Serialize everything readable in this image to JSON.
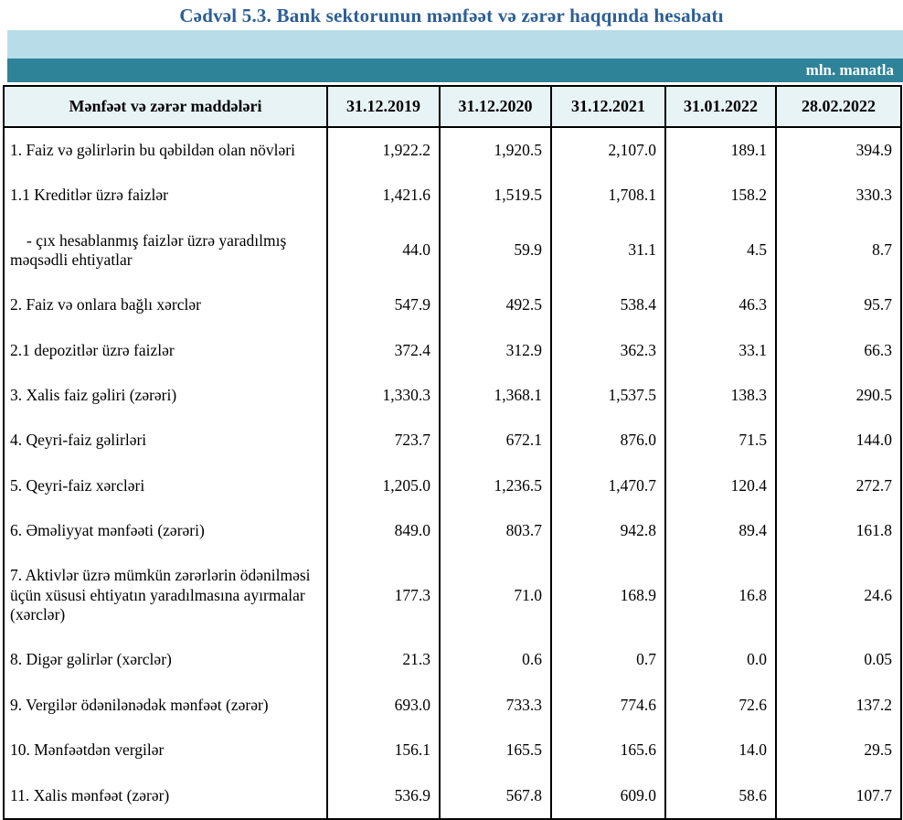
{
  "title": "Cədvəl 5.3. Bank sektorunun mənfəət və zərər haqqında hesabatı",
  "unit_label": "mln. manatla",
  "colors": {
    "title_color": "#2C5F96",
    "band_light": "#B8DDE8",
    "band_teal": "#2E8399",
    "header_bg": "#E8F3F6",
    "border_color": "#000000"
  },
  "table": {
    "header": [
      "Mənfəət və zərər maddələri",
      "31.12.2019",
      "31.12.2020",
      "31.12.2021",
      "31.01.2022",
      "28.02.2022"
    ],
    "rows": [
      {
        "label": "1. Faiz və gəlirlərin bu qəbildən olan növləri",
        "indent": 0,
        "values": [
          "1,922.2",
          "1,920.5",
          "2,107.0",
          "189.1",
          "394.9"
        ]
      },
      {
        "label": "1.1 Kreditlər üzrə faizlər",
        "indent": 1,
        "values": [
          "1,421.6",
          "1,519.5",
          "1,708.1",
          "158.2",
          "330.3"
        ]
      },
      {
        "label": "-  çıx hesablanmış faizlər üzrə yaradılmış məqsədli ehtiyatlar",
        "indent": 2,
        "values": [
          "44.0",
          "59.9",
          "31.1",
          "4.5",
          "8.7"
        ]
      },
      {
        "label": "2. Faiz və onlara bağlı xərclər",
        "indent": 0,
        "values": [
          "547.9",
          "492.5",
          "538.4",
          "46.3",
          "95.7"
        ]
      },
      {
        "label": "2.1 depozitlər üzrə faizlər",
        "indent": 1,
        "values": [
          "372.4",
          "312.9",
          "362.3",
          "33.1",
          "66.3"
        ]
      },
      {
        "label": "3. Xalis faiz gəliri (zərəri)",
        "indent": 0,
        "values": [
          "1,330.3",
          "1,368.1",
          "1,537.5",
          "138.3",
          "290.5"
        ]
      },
      {
        "label": "4. Qeyri-faiz gəlirləri",
        "indent": 0,
        "values": [
          "723.7",
          "672.1",
          "876.0",
          "71.5",
          "144.0"
        ]
      },
      {
        "label": "5. Qeyri-faiz xərcləri",
        "indent": 0,
        "values": [
          "1,205.0",
          "1,236.5",
          "1,470.7",
          "120.4",
          "272.7"
        ]
      },
      {
        "label": "6. Əməliyyat mənfəəti (zərəri)",
        "indent": 0,
        "values": [
          "849.0",
          "803.7",
          "942.8",
          "89.4",
          "161.8"
        ]
      },
      {
        "label": "7. Aktivlər üzrə mümkün zərərlərin ödənilməsi üçün xüsusi ehtiyatın yaradılmasına ayırmalar (xərclər)",
        "indent": 0,
        "values": [
          "177.3",
          "71.0",
          "168.9",
          "16.8",
          "24.6"
        ]
      },
      {
        "label": "8. Digər gəlirlər (xərclər)",
        "indent": 0,
        "values": [
          "21.3",
          "0.6",
          "0.7",
          "0.0",
          "0.05"
        ]
      },
      {
        "label": "9. Vergilər ödənilənədək mənfəət (zərər)",
        "indent": 0,
        "values": [
          "693.0",
          "733.3",
          "774.6",
          "72.6",
          "137.2"
        ]
      },
      {
        "label": "10. Mənfəətdən vergilər",
        "indent": 0,
        "values": [
          "156.1",
          "165.5",
          "165.6",
          "14.0",
          "29.5"
        ]
      },
      {
        "label": "11. Xalis mənfəət (zərər)",
        "indent": 0,
        "values": [
          "536.9",
          "567.8",
          "609.0",
          "58.6",
          "107.7"
        ]
      }
    ]
  }
}
